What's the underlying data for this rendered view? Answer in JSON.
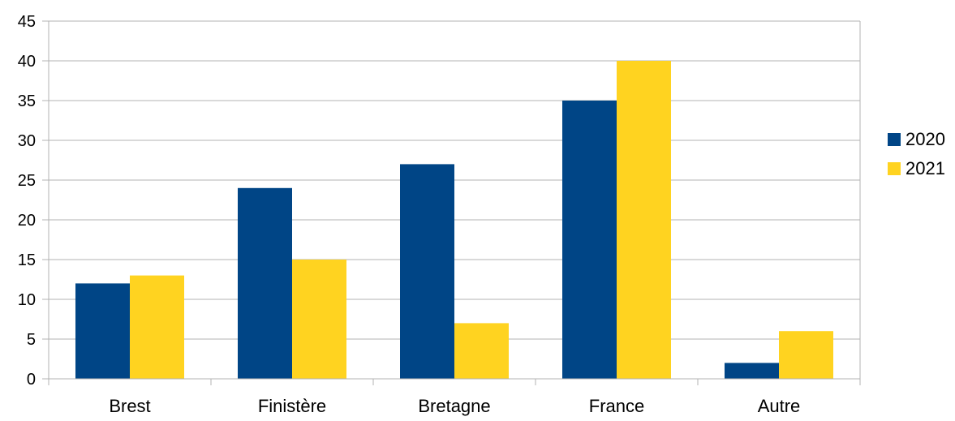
{
  "chart_data": {
    "type": "bar",
    "title": "",
    "xlabel": "",
    "ylabel": "",
    "categories": [
      "Brest",
      "Finistère",
      "Bretagne",
      "France",
      "Autre"
    ],
    "series": [
      {
        "name": "2020",
        "color": "#004586",
        "values": [
          12,
          24,
          27,
          35,
          2
        ]
      },
      {
        "name": "2021",
        "color": "#ffd320",
        "values": [
          13,
          15,
          7,
          40,
          6
        ]
      }
    ],
    "ylim": [
      0,
      45
    ],
    "yticks": [
      0,
      5,
      10,
      15,
      20,
      25,
      30,
      35,
      40,
      45
    ],
    "grid": true,
    "legend_position": "right",
    "colors": {
      "grid": "#b3b3b3",
      "axis": "#b3b3b3"
    }
  }
}
